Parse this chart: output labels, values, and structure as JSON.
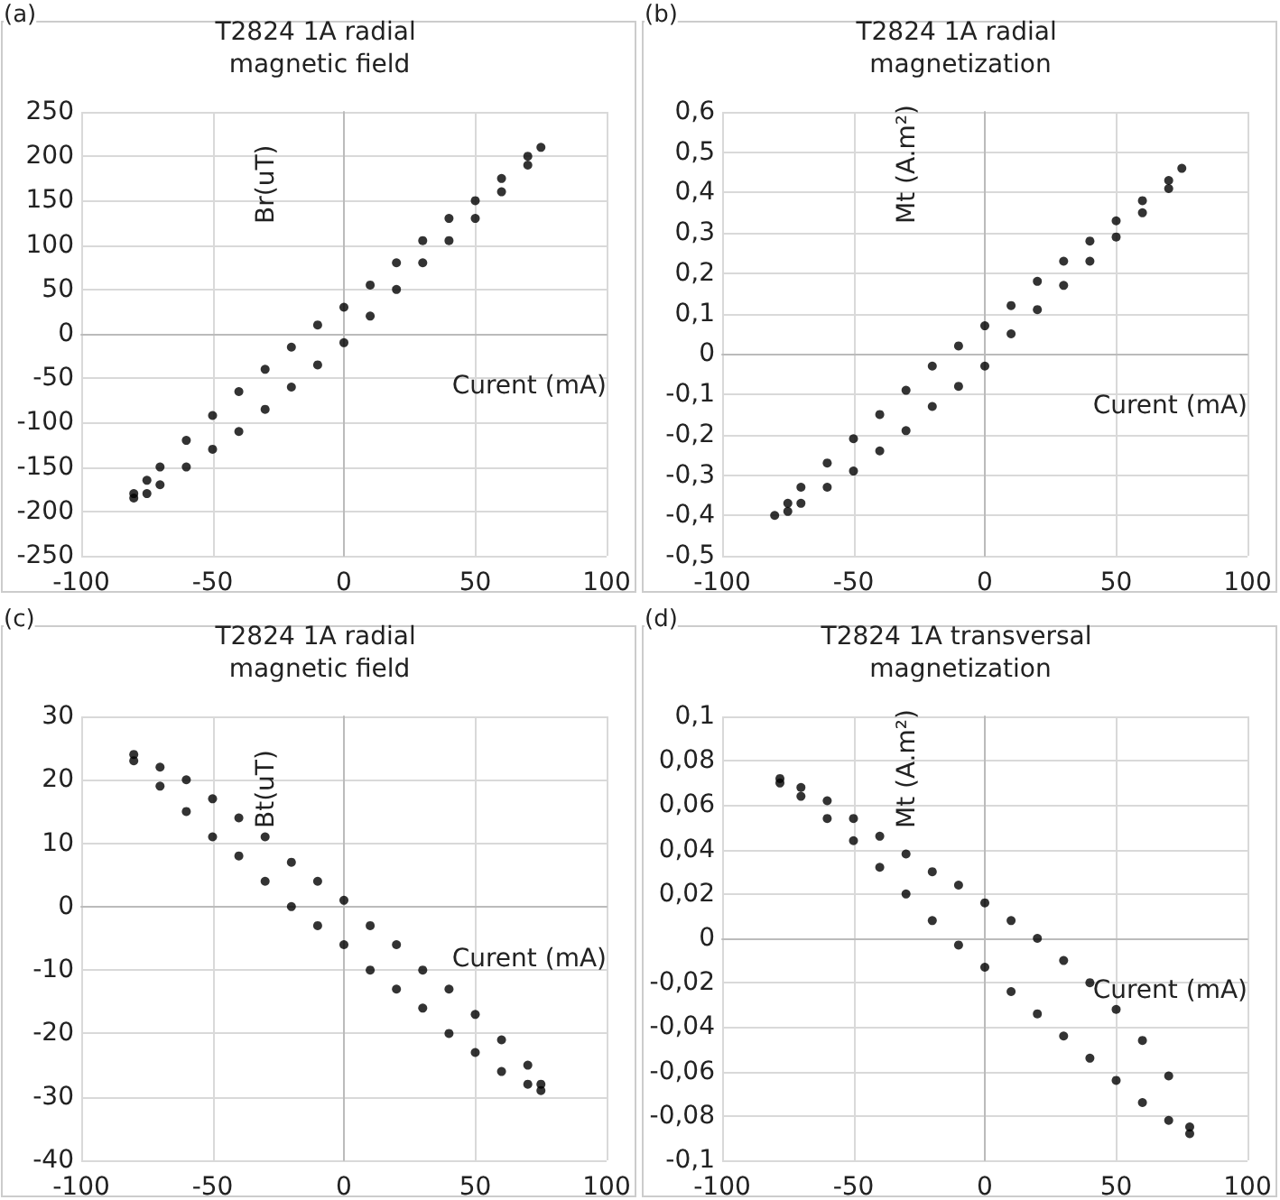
{
  "chart_data": [
    {
      "type": "scatter",
      "title": "T2824 1A radial magnetic field",
      "xlabel": "Curent (mA)",
      "ylabel": "Br(uT)",
      "annotations": [
        "(a)"
      ],
      "marker": "circle",
      "grid": true,
      "xlim": [
        -100,
        100
      ],
      "xticks": [
        -100,
        -50,
        0,
        50,
        100
      ],
      "ylim": [
        -250,
        250
      ],
      "yticks": [
        -250,
        -200,
        -150,
        -100,
        -50,
        0,
        50,
        100,
        150,
        200,
        250
      ],
      "x": [
        -80,
        -75,
        -70,
        -60,
        -50,
        -40,
        -30,
        -20,
        -10,
        0,
        10,
        20,
        30,
        40,
        50,
        60,
        70,
        75,
        70,
        60,
        50,
        40,
        30,
        20,
        10,
        0,
        -10,
        -20,
        -30,
        -40,
        -50,
        -60,
        -70,
        -75,
        -80
      ],
      "series": [
        {
          "color": "#000000",
          "values": [
            -180,
            -165,
            -150,
            -120,
            -92,
            -65,
            -40,
            -15,
            10,
            30,
            55,
            80,
            105,
            130,
            150,
            175,
            200,
            210,
            190,
            160,
            130,
            105,
            80,
            50,
            20,
            -10,
            -35,
            -60,
            -85,
            -110,
            -130,
            -150,
            -170,
            -180,
            -185
          ]
        }
      ]
    },
    {
      "type": "scatter",
      "title": "T2824 1A radial magnetization",
      "xlabel": "Curent (mA)",
      "ylabel": "Mt (A.m²)",
      "annotations": [
        "(b)"
      ],
      "marker": "circle",
      "grid": true,
      "xlim": [
        -100,
        100
      ],
      "xticks": [
        -100,
        -50,
        0,
        50,
        100
      ],
      "ylim": [
        -0.5,
        0.6
      ],
      "yticks": [
        {
          "value": -0.5,
          "label": "-0,5"
        },
        {
          "value": -0.4,
          "label": "-0,4"
        },
        {
          "value": -0.3,
          "label": "-0,3"
        },
        {
          "value": -0.2,
          "label": "-0,2"
        },
        {
          "value": -0.1,
          "label": "-0,1"
        },
        0,
        {
          "value": 0.1,
          "label": "0,1"
        },
        {
          "value": 0.2,
          "label": "0,2"
        },
        {
          "value": 0.3,
          "label": "0,3"
        },
        {
          "value": 0.4,
          "label": "0,4"
        },
        {
          "value": 0.5,
          "label": "0,5"
        },
        {
          "value": 0.6,
          "label": "0,6"
        }
      ],
      "x": [
        -75,
        -70,
        -60,
        -50,
        -40,
        -30,
        -20,
        -10,
        0,
        10,
        20,
        30,
        40,
        50,
        60,
        70,
        75,
        70,
        60,
        50,
        40,
        30,
        20,
        10,
        0,
        -10,
        -20,
        -30,
        -40,
        -50,
        -60,
        -70,
        -75,
        -80
      ],
      "series": [
        {
          "color": "#000000",
          "values": [
            -0.37,
            -0.33,
            -0.27,
            -0.21,
            -0.15,
            -0.09,
            -0.03,
            0.02,
            0.07,
            0.12,
            0.18,
            0.23,
            0.28,
            0.33,
            0.38,
            0.43,
            0.46,
            0.41,
            0.35,
            0.29,
            0.23,
            0.17,
            0.11,
            0.05,
            -0.03,
            -0.08,
            -0.13,
            -0.19,
            -0.24,
            -0.29,
            -0.33,
            -0.37,
            -0.39,
            -0.4
          ]
        }
      ]
    },
    {
      "type": "scatter",
      "title": "T2824 1A radial magnetic field",
      "xlabel": "Curent (mA)",
      "ylabel": "Bt(uT)",
      "annotations": [
        "(c)"
      ],
      "marker": "circle",
      "grid": true,
      "xlim": [
        -100,
        100
      ],
      "xticks": [
        -100,
        -50,
        0,
        50,
        100
      ],
      "ylim": [
        -40,
        30
      ],
      "yticks": [
        -40,
        -30,
        -20,
        -10,
        0,
        10,
        20,
        30
      ],
      "x": [
        -80,
        -70,
        -60,
        -50,
        -40,
        -30,
        -20,
        -10,
        0,
        10,
        20,
        30,
        40,
        50,
        60,
        70,
        75,
        75,
        70,
        60,
        50,
        40,
        30,
        20,
        10,
        0,
        -10,
        -20,
        -30,
        -40,
        -50,
        -60,
        -70,
        -80
      ],
      "series": [
        {
          "color": "#000000",
          "values": [
            24,
            22,
            20,
            17,
            14,
            11,
            7,
            4,
            1,
            -3,
            -6,
            -10,
            -13,
            -17,
            -21,
            -25,
            -28,
            -29,
            -28,
            -26,
            -23,
            -20,
            -16,
            -13,
            -10,
            -6,
            -3,
            0,
            4,
            8,
            11,
            15,
            19,
            23
          ]
        }
      ]
    },
    {
      "type": "scatter",
      "title": "T2824 1A transversal magnetization",
      "xlabel": "Curent (mA)",
      "ylabel": "Mt (A.m²)",
      "annotations": [
        "(d)"
      ],
      "marker": "circle",
      "grid": true,
      "xlim": [
        -100,
        100
      ],
      "xticks": [
        -100,
        -50,
        0,
        50,
        100
      ],
      "ylim": [
        -0.1,
        0.1
      ],
      "yticks": [
        {
          "value": -0.1,
          "label": "-0,1"
        },
        {
          "value": -0.08,
          "label": "-0,08"
        },
        {
          "value": -0.06,
          "label": "-0,06"
        },
        {
          "value": -0.04,
          "label": "-0,04"
        },
        {
          "value": -0.02,
          "label": "-0,02"
        },
        0,
        {
          "value": 0.02,
          "label": "0,02"
        },
        {
          "value": 0.04,
          "label": "0,04"
        },
        {
          "value": 0.06,
          "label": "0,06"
        },
        {
          "value": 0.08,
          "label": "0,08"
        },
        {
          "value": 0.1,
          "label": "0,1"
        }
      ],
      "x": [
        -78,
        -70,
        -60,
        -50,
        -40,
        -30,
        -20,
        -10,
        0,
        10,
        20,
        30,
        40,
        50,
        60,
        70,
        78,
        78,
        70,
        60,
        50,
        40,
        30,
        20,
        10,
        0,
        -10,
        -20,
        -30,
        -40,
        -50,
        -60,
        -70,
        -78
      ],
      "series": [
        {
          "color": "#000000",
          "values": [
            0.072,
            0.068,
            0.062,
            0.054,
            0.046,
            0.038,
            0.03,
            0.024,
            0.016,
            0.008,
            0,
            -0.01,
            -0.02,
            -0.032,
            -0.046,
            -0.062,
            -0.085,
            -0.088,
            -0.082,
            -0.074,
            -0.064,
            -0.054,
            -0.044,
            -0.034,
            -0.024,
            -0.013,
            -0.003,
            0.008,
            0.02,
            0.032,
            0.044,
            0.054,
            0.064,
            0.07
          ]
        }
      ]
    }
  ]
}
